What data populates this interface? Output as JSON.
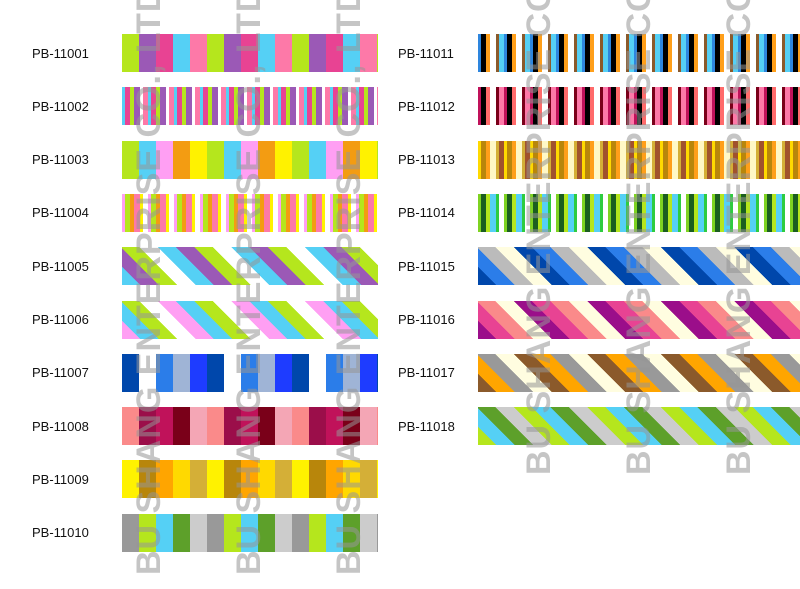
{
  "watermark_text": "BU SHANG ENTERPRISE CO., LTD.",
  "swatches": [
    {
      "code": "PB-11001",
      "pattern": "stripe",
      "colors": [
        "#b5e61d",
        "#9b59b6",
        "#e84393",
        "#55d0f5",
        "#fd79a8"
      ]
    },
    {
      "code": "PB-11002",
      "pattern": "pinstripe",
      "colors": [
        "#55d0f5",
        "#e84393",
        "#b5e61d",
        "#9b59b6",
        "#ffffff",
        "#fd79a8"
      ]
    },
    {
      "code": "PB-11003",
      "pattern": "stripe",
      "colors": [
        "#b5e61d",
        "#55d0f5",
        "#ff9ff3",
        "#f39c12",
        "#fff200"
      ]
    },
    {
      "code": "PB-11004",
      "pattern": "pinstripe",
      "colors": [
        "#ff9ff3",
        "#b5e61d",
        "#f39c12",
        "#fd79a8",
        "#fff200",
        "#ffffff"
      ]
    },
    {
      "code": "PB-11005",
      "pattern": "diagonal",
      "colors": [
        "#55d0f5",
        "#9b59b6",
        "#b5e61d",
        "#ffffff"
      ]
    },
    {
      "code": "PB-11006",
      "pattern": "diagonal",
      "colors": [
        "#ff9ff3",
        "#55d0f5",
        "#b5e61d",
        "#ffffff"
      ]
    },
    {
      "code": "PB-11007",
      "pattern": "stripe",
      "colors": [
        "#0047ab",
        "#ffffff",
        "#2b7de9",
        "#9fb4d6",
        "#1e3cff"
      ]
    },
    {
      "code": "PB-11008",
      "pattern": "stripe",
      "colors": [
        "#fa8a8a",
        "#9b0e4a",
        "#c0125a",
        "#7a0019",
        "#f4a6b5"
      ]
    },
    {
      "code": "PB-11009",
      "pattern": "stripe",
      "colors": [
        "#fff200",
        "#b8860b",
        "#ffa500",
        "#ffd900",
        "#d4af37"
      ]
    },
    {
      "code": "PB-11010",
      "pattern": "stripe",
      "colors": [
        "#999999",
        "#b5e61d",
        "#55d0f5",
        "#5da02a",
        "#cccccc"
      ]
    },
    {
      "code": "PB-11011",
      "pattern": "pinstripe",
      "colors": [
        "#2e86de",
        "#000000",
        "#ff9f1a",
        "#ffffff",
        "#8b5a2b",
        "#55d0f5"
      ]
    },
    {
      "code": "PB-11012",
      "pattern": "pinstripe",
      "colors": [
        "#c0125a",
        "#000000",
        "#ff6b6b",
        "#ffffff",
        "#7a0019",
        "#fd79a8"
      ]
    },
    {
      "code": "PB-11013",
      "pattern": "pinstripe",
      "colors": [
        "#ffd900",
        "#b8860b",
        "#ff9f1a",
        "#fff8c6",
        "#d4af37",
        "#a0522d"
      ]
    },
    {
      "code": "PB-11014",
      "pattern": "pinstripe",
      "colors": [
        "#7ed321",
        "#1b5e20",
        "#b5e61d",
        "#55d0f5",
        "#2ecc40",
        "#ffffff"
      ]
    },
    {
      "code": "PB-11015",
      "pattern": "diagonal",
      "colors": [
        "#0047ab",
        "#2b7de9",
        "#bbbbbb",
        "#fffde0"
      ]
    },
    {
      "code": "PB-11016",
      "pattern": "diagonal",
      "colors": [
        "#9b0e8a",
        "#e84393",
        "#fa8a8a",
        "#fffde0"
      ]
    },
    {
      "code": "PB-11017",
      "pattern": "diagonal",
      "colors": [
        "#8b5a2b",
        "#ffa500",
        "#999999",
        "#fffde0"
      ]
    },
    {
      "code": "PB-11018",
      "pattern": "diagonal",
      "colors": [
        "#b5e61d",
        "#55d0f5",
        "#5da02a",
        "#cccccc"
      ]
    }
  ]
}
